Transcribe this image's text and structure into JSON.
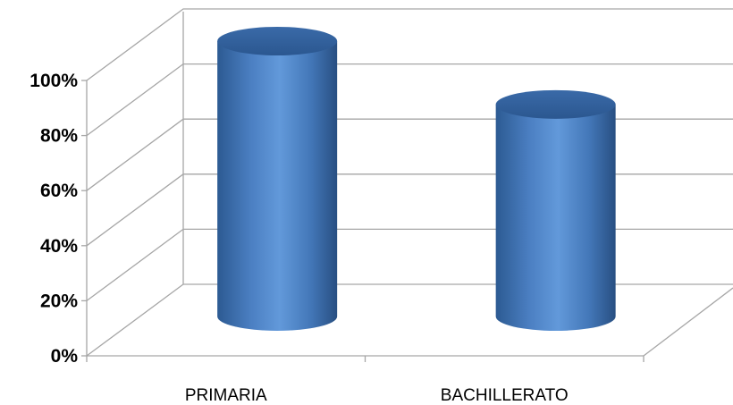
{
  "chart_data": {
    "type": "bar",
    "style": "3d-cylinder",
    "categories": [
      "PRIMARIA",
      "BACHILLERATO"
    ],
    "values": [
      100,
      77
    ],
    "ylim": [
      0,
      100
    ],
    "y_ticks": [
      "0%",
      "20%",
      "40%",
      "60%",
      "80%",
      "100%"
    ],
    "grid": true,
    "legend": "none",
    "bar_color": "#4f81bd"
  }
}
